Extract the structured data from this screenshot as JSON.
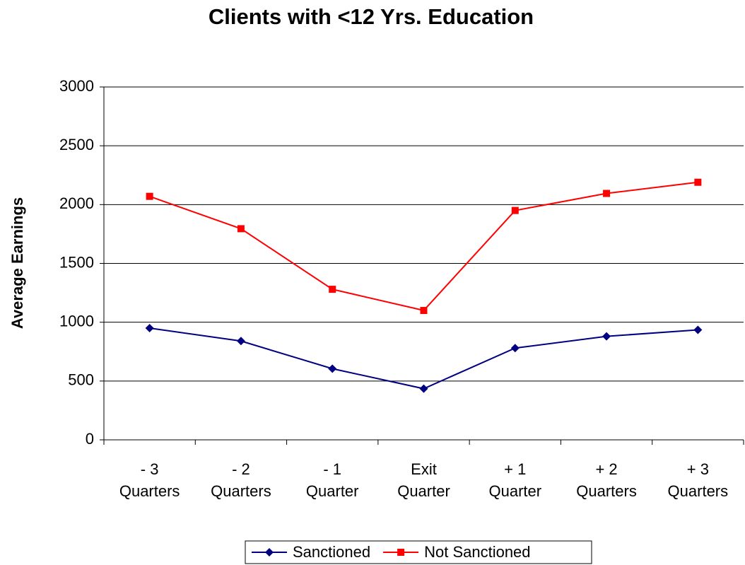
{
  "chart_data": {
    "type": "line",
    "title": "Clients with <12 Yrs. Education",
    "y_label": "Average Earnings",
    "categories": [
      "- 3\nQuarters",
      "- 2\nQuarters",
      "- 1\nQuarter",
      "Exit\nQuarter",
      "+ 1\nQuarter",
      "+ 2\nQuarters",
      "+ 3\nQuarters"
    ],
    "series": [
      {
        "name": "Sanctioned",
        "color": "#000080",
        "marker": "diamond",
        "values": [
          950,
          840,
          605,
          435,
          780,
          880,
          935
        ]
      },
      {
        "name": "Not Sanctioned",
        "color": "#ff0000",
        "marker": "square",
        "values": [
          2070,
          1795,
          1280,
          1100,
          1950,
          2095,
          2190
        ]
      }
    ],
    "ylim": [
      0,
      3000
    ],
    "yticks": [
      0,
      500,
      1000,
      1500,
      2000,
      2500,
      3000
    ],
    "grid": true,
    "legend": "bottom"
  }
}
